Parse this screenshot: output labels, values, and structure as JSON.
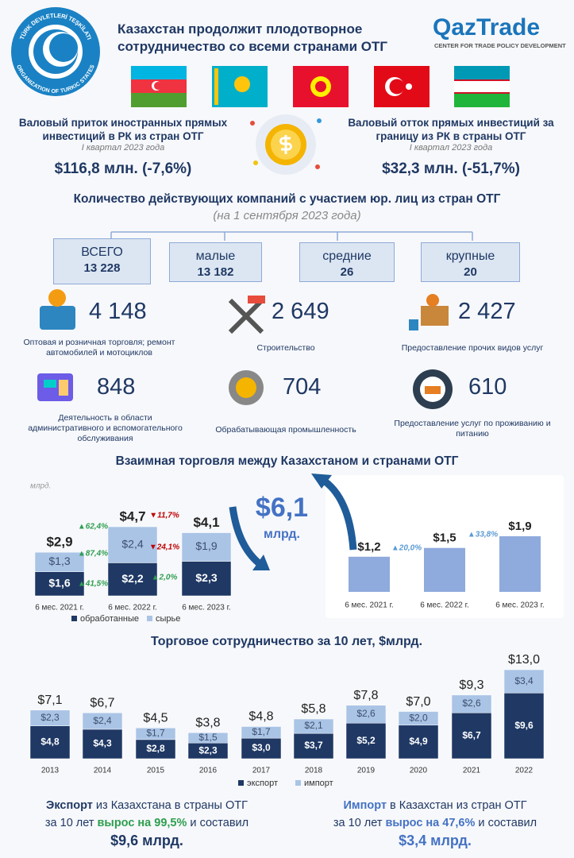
{
  "header": {
    "title": "Казахстан продолжит плодотворное сотрудничество со всеми странами ОТГ",
    "emblem": {
      "top": "TÜRK DEVLETLERİ TEŞKİLATI",
      "bottom": "ORGANIZATION OF TURKIC STATES"
    },
    "logo": {
      "name": "QazTrade",
      "tagline": "CENTER FOR TRADE POLICY DEVELOPMENT"
    }
  },
  "investment": {
    "inflow": {
      "title": "Валовый приток иностранных прямых инвестиций в РК из стран ОТГ",
      "period": "I квартал 2023 года",
      "value": "$116,8 млн. (-7,6%)"
    },
    "outflow": {
      "title": "Валовый отток прямых инвестиций за границу из РК в страны ОТГ",
      "period": "I квартал 2023 года",
      "value": "$32,3 млн. (-51,7%)"
    }
  },
  "companies": {
    "title": "Количество действующих компаний с участием юр. лиц из стран ОТГ",
    "subtitle": "(на 1 сентября 2023 года)",
    "boxes": [
      {
        "label": "ВСЕГО",
        "value": "13 228"
      },
      {
        "label": "малые",
        "value": "13 182"
      },
      {
        "label": "средние",
        "value": "26"
      },
      {
        "label": "крупные",
        "value": "20"
      }
    ]
  },
  "sectors": [
    {
      "value": "4 148",
      "label": "Оптовая и розничная торговля; ремонт автомобилей и мотоциклов"
    },
    {
      "value": "2 649",
      "label": "Строительство"
    },
    {
      "value": "2 427",
      "label": "Предоставление прочих видов услуг"
    },
    {
      "value": "848",
      "label": "Деятельность в области административного и вспомогательного обслуживания"
    },
    {
      "value": "704",
      "label": "Обрабатывающая промышленность"
    },
    {
      "value": "610",
      "label": "Предоставление услуг по проживанию и питанию"
    }
  ],
  "trade": {
    "title": "Взаимная торговля между Казахстаном и странами ОТГ",
    "total_value": "$6,1",
    "total_unit": "млрд."
  },
  "chart_data": [
    {
      "type": "bar",
      "stacked": true,
      "unit": "млрд.",
      "categories": [
        "6 мес. 2021 г.",
        "6 мес. 2022 г.",
        "6 мес. 2023 г."
      ],
      "series": [
        {
          "name": "обработанные",
          "color": "#1f3864",
          "values": [
            1.6,
            2.2,
            2.3
          ],
          "value_labels": [
            "$1,6",
            "$2,2",
            "$2,3"
          ]
        },
        {
          "name": "сырье",
          "color": "#aac4e6",
          "values": [
            1.3,
            2.4,
            1.9
          ],
          "value_labels": [
            "$1,3",
            "$2,4",
            "$1,9"
          ]
        }
      ],
      "total_labels": [
        "$2,9",
        "$4,7",
        "$4,1"
      ],
      "annotations": [
        "▲62,4%",
        "▲87,4%",
        "▲41,5%",
        "▼11,7%",
        "▼24,1%",
        "▲2,0%"
      ]
    },
    {
      "type": "bar",
      "categories": [
        "6 мес. 2021 г.",
        "6 мес. 2022 г.",
        "6 мес. 2023 г."
      ],
      "color": "#8faadc",
      "values": [
        1.2,
        1.5,
        1.9
      ],
      "value_labels": [
        "$1,2",
        "$1,5",
        "$1,9"
      ],
      "annotations": [
        "▲20,0%",
        "▲33,8%"
      ]
    },
    {
      "type": "bar",
      "stacked": true,
      "title": "Торговое сотрудничество за 10 лет, $млрд.",
      "categories": [
        "2013",
        "2014",
        "2015",
        "2016",
        "2017",
        "2018",
        "2019",
        "2020",
        "2021",
        "2022"
      ],
      "series": [
        {
          "name": "экспорт",
          "color": "#1f3864",
          "values": [
            4.8,
            4.3,
            2.8,
            2.3,
            3.0,
            3.7,
            5.2,
            4.9,
            6.7,
            9.6
          ],
          "value_labels": [
            "$4,8",
            "$4,3",
            "$2,8",
            "$2,3",
            "$3,0",
            "$3,7",
            "$5,2",
            "$4,9",
            "$6,7",
            "$9,6"
          ]
        },
        {
          "name": "импорт",
          "color": "#aac4e6",
          "values": [
            2.3,
            2.4,
            1.7,
            1.5,
            1.7,
            2.1,
            2.6,
            2.0,
            2.6,
            3.4
          ],
          "value_labels": [
            "$2,3",
            "$2,4",
            "$1,7",
            "$1,5",
            "$1,7",
            "$2,1",
            "$2,6",
            "$2,0",
            "$2,6",
            "$3,4"
          ]
        }
      ],
      "total_labels": [
        "$7,1",
        "$6,7",
        "$4,5",
        "$3,8",
        "$4,8",
        "$5,8",
        "$7,8",
        "$7,0",
        "$9,3",
        "$13,0"
      ]
    }
  ],
  "footer": {
    "export": [
      [
        {
          "text": "Экспорт",
          "style": "strong"
        },
        {
          "text": " из Казахстана в страны ОТГ"
        }
      ],
      [
        {
          "text": "за 10 лет "
        },
        {
          "text": "вырос на 99,5%",
          "style": "accent"
        },
        {
          "text": " и составил"
        }
      ],
      [
        {
          "text": "$9,6 млрд.",
          "style": "last"
        }
      ]
    ],
    "import": [
      [
        {
          "text": "Импорт",
          "style": "strong"
        },
        {
          "text": " в Казахстан из стран ОТГ"
        }
      ],
      [
        {
          "text": "за 10 лет "
        },
        {
          "text": "вырос на 47,6%",
          "style": "accent"
        },
        {
          "text": " и составил"
        }
      ],
      [
        {
          "text": "$3,4 млрд.",
          "style": "last"
        }
      ]
    ]
  }
}
